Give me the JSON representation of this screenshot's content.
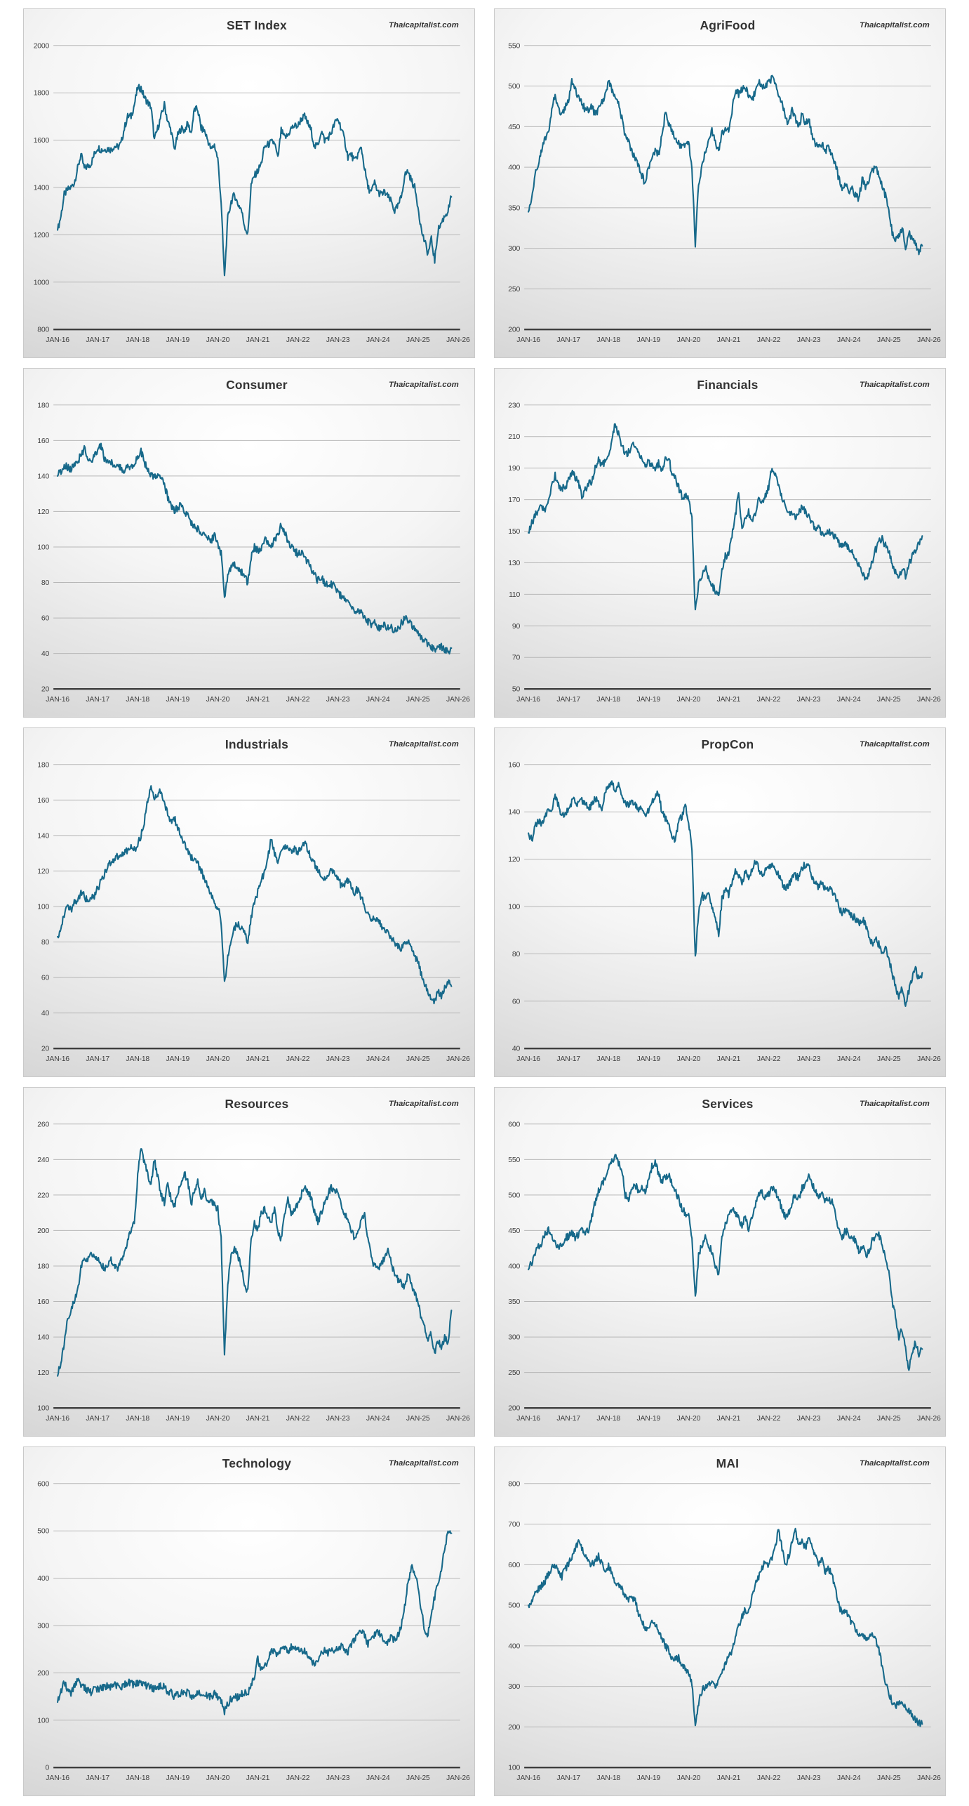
{
  "watermark": "Thaicapitalist.com",
  "colors": {
    "line": "#17698a",
    "grid": "#b7b7b7",
    "axis": "#3d3d3d",
    "label": "#3f3f3f",
    "title": "#333333",
    "panel_border": "#c9c9c9"
  },
  "x_tick_labels": [
    "JAN-16",
    "JAN-17",
    "JAN-18",
    "JAN-19",
    "JAN-20",
    "JAN-21",
    "JAN-22",
    "JAN-23",
    "JAN-24",
    "JAN-25",
    "JAN-26"
  ],
  "series_start": "2016-01",
  "series_frequency": "monthly",
  "chart_data": [
    {
      "type": "line",
      "title": "SET Index",
      "ylim": [
        800,
        2000
      ],
      "ystep": 200,
      "y_tick_labels": [
        "2000",
        "1800",
        "1600",
        "1400",
        "1200",
        "1000",
        "800"
      ],
      "monthly_values": [
        1220,
        1280,
        1370,
        1390,
        1400,
        1420,
        1480,
        1540,
        1480,
        1490,
        1500,
        1540,
        1570,
        1560,
        1560,
        1565,
        1560,
        1575,
        1570,
        1585,
        1650,
        1700,
        1700,
        1750,
        1820,
        1820,
        1780,
        1760,
        1740,
        1600,
        1650,
        1700,
        1750,
        1680,
        1640,
        1560,
        1620,
        1650,
        1640,
        1670,
        1630,
        1730,
        1730,
        1650,
        1640,
        1600,
        1560,
        1580,
        1520,
        1340,
        1020,
        1270,
        1340,
        1370,
        1330,
        1310,
        1240,
        1200,
        1410,
        1450,
        1470,
        1500,
        1570,
        1580,
        1590,
        1590,
        1520,
        1640,
        1610,
        1620,
        1650,
        1660,
        1660,
        1690,
        1700,
        1670,
        1640,
        1570,
        1580,
        1640,
        1600,
        1610,
        1630,
        1670,
        1690,
        1650,
        1600,
        1530,
        1540,
        1510,
        1540,
        1570,
        1480,
        1400,
        1380,
        1420,
        1380,
        1370,
        1380,
        1360,
        1340,
        1300,
        1320,
        1360,
        1450,
        1470,
        1430,
        1400,
        1320,
        1220,
        1170,
        1120,
        1180,
        1090,
        1220,
        1250,
        1280,
        1300,
        1360
      ]
    },
    {
      "type": "line",
      "title": "AgriFood",
      "ylim": [
        200,
        550
      ],
      "ystep": 50,
      "y_tick_labels": [
        "550",
        "500",
        "450",
        "400",
        "350",
        "300",
        "250",
        "200"
      ],
      "monthly_values": [
        345,
        365,
        390,
        405,
        420,
        435,
        445,
        470,
        490,
        470,
        465,
        475,
        480,
        505,
        495,
        485,
        480,
        470,
        470,
        475,
        465,
        470,
        480,
        490,
        505,
        495,
        485,
        480,
        460,
        440,
        430,
        420,
        410,
        400,
        390,
        380,
        400,
        415,
        420,
        415,
        440,
        465,
        455,
        445,
        435,
        430,
        425,
        425,
        430,
        400,
        305,
        380,
        400,
        420,
        435,
        445,
        430,
        420,
        440,
        450,
        445,
        470,
        495,
        490,
        495,
        500,
        490,
        480,
        495,
        505,
        500,
        500,
        505,
        510,
        500,
        490,
        480,
        460,
        455,
        470,
        460,
        450,
        465,
        455,
        460,
        440,
        430,
        425,
        430,
        420,
        425,
        415,
        405,
        385,
        375,
        380,
        370,
        375,
        365,
        360,
        385,
        375,
        380,
        395,
        400,
        390,
        375,
        365,
        345,
        320,
        310,
        315,
        325,
        300,
        320,
        310,
        305,
        295,
        303
      ]
    },
    {
      "type": "line",
      "title": "Consumer",
      "ylim": [
        20,
        180
      ],
      "ystep": 20,
      "y_tick_labels": [
        "180",
        "160",
        "140",
        "120",
        "100",
        "80",
        "60",
        "40",
        "20"
      ],
      "monthly_values": [
        140,
        143,
        146,
        145,
        144,
        146,
        148,
        152,
        155,
        150,
        148,
        152,
        155,
        157,
        150,
        148,
        148,
        146,
        146,
        144,
        143,
        145,
        145,
        147,
        150,
        154,
        148,
        143,
        140,
        139,
        141,
        140,
        135,
        128,
        124,
        120,
        122,
        124,
        120,
        118,
        113,
        112,
        110,
        108,
        106,
        105,
        104,
        106,
        102,
        96,
        72,
        84,
        88,
        90,
        88,
        86,
        84,
        80,
        94,
        100,
        98,
        100,
        104,
        102,
        100,
        104,
        106,
        113,
        108,
        104,
        100,
        98,
        96,
        97,
        94,
        91,
        88,
        84,
        81,
        83,
        80,
        78,
        79,
        78,
        75,
        72,
        70,
        68,
        66,
        64,
        65,
        63,
        61,
        58,
        56,
        57,
        55,
        54,
        56,
        54,
        55,
        53,
        54,
        57,
        60,
        58,
        56,
        54,
        52,
        49,
        47,
        45,
        44,
        42,
        43,
        44,
        42,
        41,
        43
      ]
    },
    {
      "type": "line",
      "title": "Financials",
      "ylim": [
        50,
        230
      ],
      "ystep": 20,
      "y_tick_labels": [
        "230",
        "210",
        "190",
        "170",
        "150",
        "130",
        "110",
        "90",
        "70",
        "50"
      ],
      "monthly_values": [
        149,
        155,
        160,
        163,
        166,
        163,
        170,
        178,
        185,
        180,
        177,
        178,
        182,
        188,
        184,
        180,
        172,
        176,
        180,
        182,
        190,
        196,
        192,
        194,
        198,
        208,
        218,
        212,
        205,
        198,
        200,
        205,
        204,
        200,
        196,
        190,
        194,
        192,
        190,
        193,
        188,
        196,
        197,
        186,
        183,
        178,
        172,
        173,
        170,
        158,
        98,
        118,
        122,
        128,
        120,
        116,
        112,
        109,
        126,
        134,
        135,
        148,
        160,
        175,
        152,
        158,
        162,
        156,
        162,
        170,
        168,
        172,
        178,
        191,
        185,
        178,
        172,
        166,
        162,
        160,
        158,
        162,
        165,
        162,
        160,
        155,
        150,
        152,
        148,
        147,
        150,
        148,
        146,
        143,
        140,
        141,
        139,
        137,
        133,
        129,
        124,
        120,
        123,
        130,
        138,
        143,
        145,
        141,
        138,
        130,
        124,
        120,
        127,
        122,
        129,
        134,
        138,
        142,
        147
      ]
    },
    {
      "type": "line",
      "title": "Industrials",
      "ylim": [
        20,
        180
      ],
      "ystep": 20,
      "y_tick_labels": [
        "180",
        "160",
        "140",
        "120",
        "100",
        "80",
        "60",
        "40",
        "20"
      ],
      "monthly_values": [
        83,
        88,
        95,
        100,
        98,
        102,
        104,
        108,
        106,
        103,
        104,
        106,
        110,
        114,
        118,
        122,
        125,
        127,
        128,
        129,
        130,
        132,
        133,
        132,
        135,
        140,
        148,
        160,
        166,
        160,
        163,
        166,
        158,
        152,
        148,
        150,
        144,
        140,
        136,
        132,
        128,
        126,
        124,
        120,
        116,
        112,
        106,
        102,
        100,
        92,
        56,
        72,
        80,
        88,
        90,
        88,
        86,
        80,
        94,
        102,
        108,
        114,
        120,
        128,
        138,
        130,
        126,
        130,
        133,
        135,
        130,
        133,
        130,
        134,
        136,
        132,
        128,
        124,
        120,
        118,
        116,
        118,
        120,
        118,
        115,
        112,
        113,
        115,
        112,
        108,
        110,
        105,
        100,
        96,
        93,
        94,
        92,
        89,
        87,
        85,
        83,
        80,
        78,
        76,
        79,
        80,
        76,
        72,
        68,
        62,
        57,
        52,
        48,
        46,
        52,
        50,
        54,
        57,
        55
      ]
    },
    {
      "type": "line",
      "title": "PropCon",
      "ylim": [
        40,
        160
      ],
      "ystep": 20,
      "y_tick_labels": [
        "160",
        "140",
        "120",
        "100",
        "80",
        "60",
        "40"
      ],
      "monthly_values": [
        131,
        128,
        134,
        136,
        135,
        138,
        142,
        141,
        147,
        143,
        138,
        139,
        141,
        144,
        145,
        143,
        145,
        144,
        141,
        143,
        146,
        144,
        141,
        148,
        151,
        153,
        149,
        151,
        147,
        144,
        143,
        145,
        143,
        140,
        142,
        138,
        141,
        144,
        147,
        148,
        140,
        137,
        136,
        130,
        128,
        136,
        138,
        143,
        135,
        125,
        78,
        98,
        105,
        103,
        107,
        100,
        95,
        88,
        103,
        107,
        105,
        110,
        115,
        113,
        110,
        115,
        112,
        116,
        119,
        116,
        113,
        115,
        116,
        117,
        115,
        113,
        110,
        108,
        109,
        112,
        113,
        112,
        116,
        118,
        117,
        113,
        110,
        108,
        110,
        107,
        108,
        106,
        104,
        100,
        97,
        99,
        98,
        96,
        95,
        93,
        95,
        92,
        88,
        84,
        86,
        84,
        80,
        83,
        78,
        72,
        66,
        62,
        66,
        59,
        64,
        70,
        74,
        69,
        72
      ]
    },
    {
      "type": "line",
      "title": "Resources",
      "ylim": [
        100,
        260
      ],
      "ystep": 20,
      "y_tick_labels": [
        "260",
        "240",
        "220",
        "200",
        "180",
        "160",
        "140",
        "120",
        "100"
      ],
      "monthly_values": [
        118,
        126,
        136,
        150,
        155,
        160,
        166,
        180,
        186,
        182,
        188,
        186,
        185,
        182,
        178,
        180,
        183,
        180,
        178,
        182,
        186,
        195,
        200,
        205,
        230,
        248,
        238,
        232,
        226,
        240,
        230,
        220,
        216,
        226,
        218,
        214,
        220,
        228,
        232,
        228,
        215,
        222,
        228,
        218,
        222,
        215,
        218,
        214,
        212,
        195,
        130,
        170,
        185,
        190,
        185,
        180,
        170,
        165,
        195,
        205,
        200,
        210,
        212,
        208,
        205,
        212,
        200,
        195,
        210,
        218,
        210,
        212,
        215,
        220,
        225,
        222,
        218,
        210,
        205,
        210,
        215,
        220,
        225,
        222,
        222,
        215,
        210,
        205,
        200,
        196,
        200,
        205,
        210,
        195,
        185,
        180,
        178,
        180,
        185,
        188,
        182,
        175,
        172,
        170,
        168,
        175,
        170,
        165,
        160,
        150,
        145,
        138,
        142,
        130,
        138,
        134,
        140,
        137,
        155
      ]
    },
    {
      "type": "line",
      "title": "Services",
      "ylim": [
        200,
        600
      ],
      "ystep": 50,
      "y_tick_labels": [
        "600",
        "550",
        "500",
        "450",
        "400",
        "350",
        "300",
        "250",
        "200"
      ],
      "monthly_values": [
        395,
        405,
        420,
        428,
        432,
        445,
        450,
        440,
        435,
        425,
        430,
        440,
        442,
        446,
        440,
        445,
        450,
        448,
        452,
        470,
        490,
        505,
        515,
        525,
        540,
        548,
        556,
        545,
        538,
        500,
        495,
        505,
        515,
        505,
        510,
        505,
        520,
        540,
        548,
        530,
        520,
        525,
        530,
        515,
        505,
        495,
        480,
        475,
        470,
        440,
        355,
        415,
        430,
        445,
        430,
        420,
        400,
        390,
        440,
        460,
        470,
        480,
        475,
        465,
        455,
        470,
        450,
        470,
        485,
        500,
        505,
        495,
        500,
        510,
        505,
        495,
        480,
        470,
        475,
        490,
        500,
        495,
        510,
        515,
        528,
        515,
        505,
        500,
        505,
        490,
        495,
        490,
        475,
        450,
        440,
        450,
        445,
        440,
        435,
        420,
        430,
        415,
        420,
        435,
        440,
        445,
        430,
        415,
        390,
        350,
        330,
        300,
        310,
        285,
        252,
        280,
        292,
        275,
        283
      ]
    },
    {
      "type": "line",
      "title": "Technology",
      "ylim": [
        0,
        600
      ],
      "ystep": 100,
      "y_tick_labels": [
        "600",
        "500",
        "400",
        "300",
        "200",
        "100",
        "0"
      ],
      "monthly_values": [
        138,
        160,
        183,
        162,
        155,
        170,
        185,
        172,
        168,
        162,
        158,
        165,
        165,
        170,
        168,
        172,
        170,
        175,
        172,
        170,
        175,
        180,
        178,
        175,
        180,
        178,
        175,
        172,
        170,
        165,
        168,
        172,
        170,
        160,
        158,
        150,
        155,
        158,
        155,
        160,
        150,
        155,
        160,
        150,
        155,
        152,
        148,
        155,
        150,
        140,
        118,
        135,
        145,
        150,
        148,
        155,
        160,
        155,
        175,
        195,
        230,
        205,
        212,
        228,
        250,
        245,
        240,
        255,
        250,
        245,
        255,
        250,
        255,
        245,
        250,
        238,
        225,
        215,
        225,
        240,
        248,
        240,
        250,
        245,
        250,
        255,
        250,
        245,
        260,
        270,
        285,
        290,
        280,
        260,
        270,
        280,
        285,
        280,
        270,
        265,
        275,
        270,
        280,
        300,
        340,
        390,
        425,
        410,
        380,
        330,
        292,
        282,
        330,
        360,
        390,
        420,
        460,
        505,
        495
      ]
    },
    {
      "type": "line",
      "title": "MAI",
      "ylim": [
        100,
        800
      ],
      "ystep": 100,
      "y_tick_labels": [
        "800",
        "700",
        "600",
        "500",
        "400",
        "300",
        "200",
        "100"
      ],
      "monthly_values": [
        500,
        510,
        530,
        540,
        550,
        560,
        580,
        590,
        600,
        580,
        570,
        590,
        600,
        620,
        640,
        655,
        640,
        620,
        610,
        600,
        610,
        620,
        600,
        590,
        595,
        580,
        560,
        550,
        540,
        520,
        510,
        520,
        510,
        480,
        460,
        440,
        450,
        460,
        450,
        440,
        420,
        400,
        390,
        370,
        365,
        370,
        355,
        345,
        330,
        310,
        210,
        260,
        290,
        300,
        310,
        305,
        300,
        310,
        330,
        360,
        370,
        390,
        420,
        450,
        470,
        490,
        480,
        520,
        550,
        570,
        590,
        610,
        600,
        620,
        650,
        685,
        640,
        600,
        620,
        660,
        680,
        650,
        660,
        640,
        670,
        650,
        620,
        600,
        610,
        580,
        590,
        570,
        540,
        500,
        480,
        490,
        470,
        455,
        440,
        425,
        430,
        415,
        420,
        430,
        420,
        390,
        350,
        310,
        280,
        262,
        252,
        256,
        262,
        250,
        240,
        228,
        215,
        210,
        207
      ]
    }
  ]
}
